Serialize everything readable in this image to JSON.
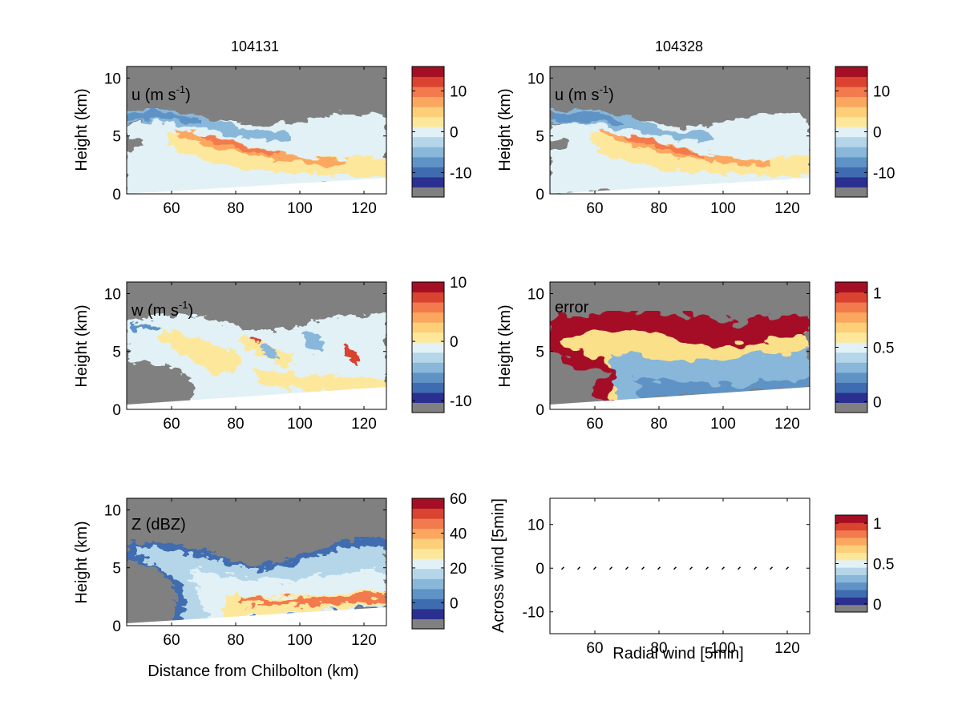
{
  "figure": {
    "background": "#ffffff",
    "missing_color": "#808080",
    "colormap": [
      "#2b2f8f",
      "#3f6cb0",
      "#5f93c6",
      "#89b7d9",
      "#b5d6e9",
      "#e1f1f6",
      "#fde79b",
      "#fdcf79",
      "#fba760",
      "#f27a4d",
      "#d9432f",
      "#a50f26"
    ]
  },
  "chart_data": [
    {
      "type": "heatmap",
      "column_title": "104131",
      "panel_label": "u (m s",
      "panel_label_sup": "-1",
      "panel_label_close": ")",
      "xlabel": "",
      "ylabel": "Height (km)",
      "xlim": [
        46,
        127
      ],
      "ylim": [
        0,
        11
      ],
      "xticks": [
        "60",
        "80",
        "100",
        "120"
      ],
      "yticks": [
        "0",
        "5",
        "10"
      ],
      "colorbar": {
        "ticks": [
          "10",
          "0",
          "-10"
        ],
        "tick_values": [
          10,
          0,
          -10
        ],
        "range": [
          -16,
          16
        ]
      }
    },
    {
      "type": "heatmap",
      "column_title": "104328",
      "panel_label": "u (m s",
      "panel_label_sup": "-1",
      "panel_label_close": ")",
      "xlabel": "",
      "ylabel": "Height (km)",
      "xlim": [
        46,
        127
      ],
      "ylim": [
        0,
        11
      ],
      "xticks": [
        "60",
        "80",
        "100",
        "120"
      ],
      "yticks": [
        "0",
        "5",
        "10"
      ],
      "colorbar": {
        "ticks": [
          "10",
          "0",
          "-10"
        ],
        "tick_values": [
          10,
          0,
          -10
        ],
        "range": [
          -16,
          16
        ]
      }
    },
    {
      "type": "heatmap",
      "panel_label": "w (m s",
      "panel_label_sup": "-1",
      "panel_label_close": ")",
      "xlabel": "",
      "ylabel": "Height (km)",
      "xlim": [
        46,
        127
      ],
      "ylim": [
        0,
        11
      ],
      "xticks": [
        "60",
        "80",
        "100",
        "120"
      ],
      "yticks": [
        "0",
        "5",
        "10"
      ],
      "colorbar": {
        "ticks": [
          "10",
          "0",
          "-10"
        ],
        "tick_values": [
          10,
          0,
          -10
        ],
        "range": [
          -12,
          10
        ]
      }
    },
    {
      "type": "heatmap",
      "panel_label": "error",
      "xlabel": "",
      "ylabel": "Height (km)",
      "xlim": [
        46,
        127
      ],
      "ylim": [
        0,
        11
      ],
      "xticks": [
        "60",
        "80",
        "100",
        "120"
      ],
      "yticks": [
        "0",
        "5",
        "10"
      ],
      "colorbar": {
        "ticks": [
          "1",
          "0.5",
          "0"
        ],
        "tick_values": [
          1,
          0.5,
          0
        ],
        "range": [
          -0.1,
          1.1
        ]
      }
    },
    {
      "type": "heatmap",
      "panel_label": "Z (dBZ)",
      "xlabel": "Distance from Chilbolton (km)",
      "ylabel": "Height (km)",
      "xlim": [
        46,
        127
      ],
      "ylim": [
        0,
        11
      ],
      "xticks": [
        "60",
        "80",
        "100",
        "120"
      ],
      "yticks": [
        "0",
        "5",
        "10"
      ],
      "colorbar": {
        "ticks": [
          "60",
          "40",
          "20",
          "0"
        ],
        "tick_values": [
          60,
          40,
          20,
          0
        ],
        "range": [
          -15,
          60
        ]
      }
    },
    {
      "type": "scatter",
      "xlabel": "Radial wind [5min]",
      "ylabel": "Across wind [5min]",
      "xlim": [
        46,
        127
      ],
      "ylim": [
        -15,
        16
      ],
      "xticks": [
        "60",
        "80",
        "100",
        "120"
      ],
      "yticks": [
        "10",
        "0",
        "-10"
      ],
      "x": [
        50,
        55,
        60,
        65,
        70,
        75,
        80,
        85,
        90,
        95,
        100,
        105,
        110,
        115,
        120
      ],
      "y": [
        0,
        0,
        0,
        0,
        0,
        0,
        0,
        0,
        0,
        0,
        0,
        0,
        0,
        0,
        0
      ],
      "colorbar": {
        "ticks": [
          "1",
          "0.5",
          "0"
        ],
        "tick_values": [
          1,
          0.5,
          0
        ],
        "range": [
          -0.1,
          1.1
        ]
      }
    }
  ]
}
